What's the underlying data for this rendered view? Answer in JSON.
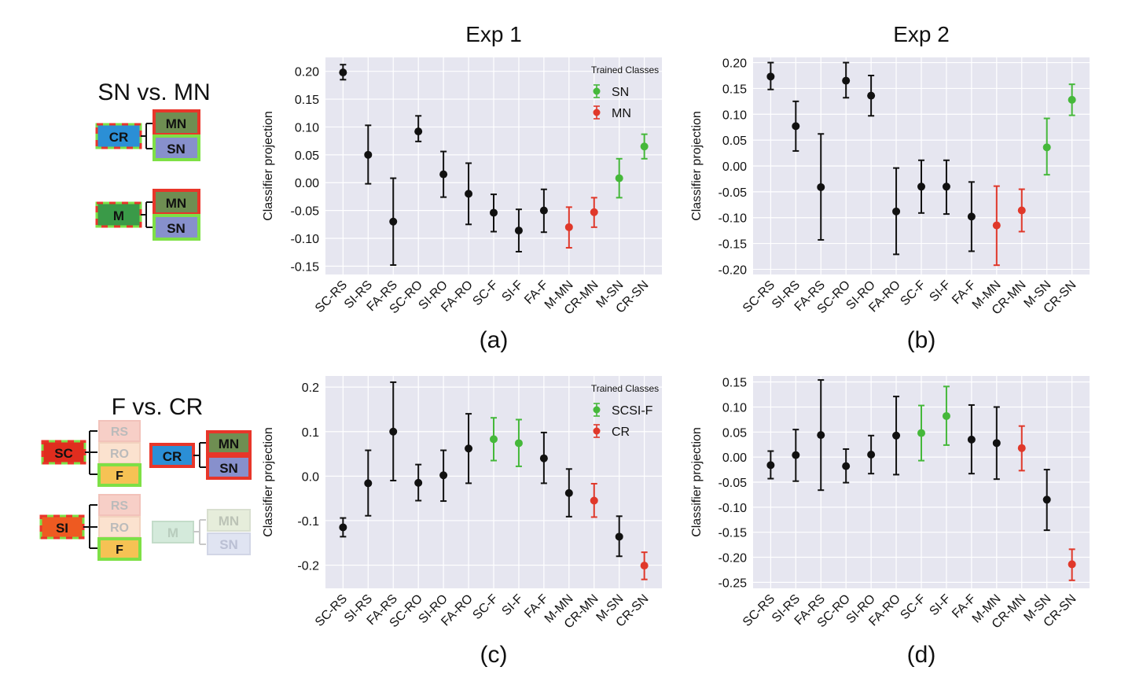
{
  "diagrams": {
    "top": {
      "title": "SN vs. MN",
      "groups": [
        {
          "source": "CR",
          "targets": [
            "MN",
            "SN"
          ]
        },
        {
          "source": "M",
          "targets": [
            "MN",
            "SN"
          ]
        }
      ]
    },
    "bottom": {
      "title": "F vs. CR",
      "groups": [
        {
          "source": "SC",
          "targets": [
            "RS",
            "RO",
            "F"
          ]
        },
        {
          "source": "SI",
          "targets": [
            "RS",
            "RO",
            "F"
          ]
        },
        {
          "source": "CR",
          "targets": [
            "MN",
            "SN"
          ]
        },
        {
          "source": "M",
          "targets": [
            "MN",
            "SN"
          ]
        }
      ]
    }
  },
  "colors": {
    "black": "#111111",
    "green": "#45b83a",
    "red": "#e0382a",
    "plot_bg": "#e6e6f0",
    "grid": "#ffffff",
    "box_blue": "#2b8fd6",
    "box_green": "#3a9a48",
    "box_olive": "#6f8e52",
    "box_lavender": "#8790cc",
    "box_red": "#e02d1e",
    "box_orange": "#ee5a21",
    "box_pink": "#f7cfc7",
    "box_peach": "#fbe2cf",
    "box_yellow": "#f6c254",
    "box_outline_red": "#e8362a",
    "box_outline_green": "#7ee046"
  },
  "chart_data": [
    {
      "id": "a",
      "type": "scatter",
      "title": "Exp 1",
      "panel_label": "(a)",
      "ylabel": "Classifier projection",
      "ylim": [
        -0.165,
        0.225
      ],
      "yticks": [
        "0.20",
        "0.15",
        "0.10",
        "0.05",
        "0.00",
        "-0.05",
        "-0.10",
        "-0.15"
      ],
      "categories": [
        "SC-RS",
        "SI-RS",
        "FA-RS",
        "SC-RO",
        "SI-RO",
        "FA-RO",
        "SC-F",
        "SI-F",
        "FA-F",
        "M-MN",
        "CR-MN",
        "M-SN",
        "CR-SN"
      ],
      "values": [
        0.198,
        0.05,
        -0.07,
        0.092,
        0.015,
        -0.02,
        -0.054,
        -0.086,
        -0.05,
        -0.08,
        -0.053,
        0.008,
        0.065
      ],
      "err_low": [
        0.185,
        -0.002,
        -0.148,
        0.074,
        -0.026,
        -0.075,
        -0.088,
        -0.124,
        -0.089,
        -0.117,
        -0.08,
        -0.027,
        0.043
      ],
      "err_high": [
        0.212,
        0.103,
        0.008,
        0.12,
        0.056,
        0.035,
        -0.021,
        -0.048,
        -0.012,
        -0.044,
        -0.027,
        0.043,
        0.087
      ],
      "colors": [
        "black",
        "black",
        "black",
        "black",
        "black",
        "black",
        "black",
        "black",
        "black",
        "red",
        "red",
        "green",
        "green"
      ],
      "legend": {
        "title": "Trained Classes",
        "entries": [
          {
            "label": "SN",
            "color": "green"
          },
          {
            "label": "MN",
            "color": "red"
          }
        ],
        "position": "top-right"
      },
      "grid": true
    },
    {
      "id": "b",
      "type": "scatter",
      "title": "Exp 2",
      "panel_label": "(b)",
      "ylabel": "Classifier projection",
      "ylim": [
        -0.21,
        0.21
      ],
      "yticks": [
        "0.20",
        "0.15",
        "0.10",
        "0.05",
        "0.00",
        "-0.05",
        "-0.10",
        "-0.15",
        "-0.20"
      ],
      "categories": [
        "SC-RS",
        "SI-RS",
        "FA-RS",
        "SC-RO",
        "SI-RO",
        "FA-RO",
        "SC-F",
        "SI-F",
        "FA-F",
        "M-MN",
        "CR-MN",
        "M-SN",
        "CR-SN"
      ],
      "values": [
        0.173,
        0.077,
        -0.041,
        0.165,
        0.136,
        -0.088,
        -0.04,
        -0.04,
        -0.098,
        -0.115,
        -0.086,
        0.036,
        0.128
      ],
      "err_low": [
        0.148,
        0.029,
        -0.143,
        0.132,
        0.097,
        -0.171,
        -0.091,
        -0.093,
        -0.165,
        -0.192,
        -0.127,
        -0.017,
        0.098
      ],
      "err_high": [
        0.2,
        0.125,
        0.062,
        0.2,
        0.175,
        -0.004,
        0.011,
        0.011,
        -0.031,
        -0.039,
        -0.045,
        0.092,
        0.158
      ],
      "colors": [
        "black",
        "black",
        "black",
        "black",
        "black",
        "black",
        "black",
        "black",
        "black",
        "red",
        "red",
        "green",
        "green"
      ],
      "grid": true
    },
    {
      "id": "c",
      "type": "scatter",
      "panel_label": "(c)",
      "ylabel": "Classifier projection",
      "ylim": [
        -0.252,
        0.225
      ],
      "yticks": [
        "0.2",
        "0.1",
        "0.0",
        "-0.1",
        "-0.2"
      ],
      "categories": [
        "SC-RS",
        "SI-RS",
        "FA-RS",
        "SC-RO",
        "SI-RO",
        "FA-RO",
        "SC-F",
        "SI-F",
        "FA-F",
        "M-MN",
        "CR-MN",
        "M-SN",
        "CR-SN"
      ],
      "values": [
        -0.115,
        -0.016,
        0.1,
        -0.015,
        0.002,
        0.062,
        0.083,
        0.074,
        0.04,
        -0.038,
        -0.055,
        -0.136,
        -0.201
      ],
      "err_low": [
        -0.136,
        -0.089,
        -0.01,
        -0.055,
        -0.056,
        -0.016,
        0.035,
        0.022,
        -0.016,
        -0.091,
        -0.092,
        -0.18,
        -0.232
      ],
      "err_high": [
        -0.094,
        0.058,
        0.211,
        0.026,
        0.058,
        0.14,
        0.131,
        0.127,
        0.098,
        0.016,
        -0.017,
        -0.09,
        -0.171
      ],
      "colors": [
        "black",
        "black",
        "black",
        "black",
        "black",
        "black",
        "green",
        "green",
        "black",
        "black",
        "red",
        "black",
        "red"
      ],
      "legend": {
        "title": "Trained Classes",
        "entries": [
          {
            "label": "SCSI-F",
            "color": "green"
          },
          {
            "label": "CR",
            "color": "red"
          }
        ],
        "position": "top-right"
      },
      "grid": true
    },
    {
      "id": "d",
      "type": "scatter",
      "panel_label": "(d)",
      "ylabel": "Classifier projection",
      "ylim": [
        -0.262,
        0.162
      ],
      "yticks": [
        "0.15",
        "0.10",
        "0.05",
        "0.00",
        "-0.05",
        "-0.10",
        "-0.15",
        "-0.20",
        "-0.25"
      ],
      "categories": [
        "SC-RS",
        "SI-RS",
        "FA-RS",
        "SC-RO",
        "SI-RO",
        "FA-RO",
        "SC-F",
        "SI-F",
        "FA-F",
        "M-MN",
        "CR-MN",
        "M-SN",
        "CR-SN"
      ],
      "values": [
        -0.016,
        0.004,
        0.044,
        -0.018,
        0.005,
        0.043,
        0.048,
        0.082,
        0.035,
        0.028,
        0.018,
        -0.085,
        -0.214
      ],
      "err_low": [
        -0.043,
        -0.048,
        -0.066,
        -0.051,
        -0.033,
        -0.035,
        -0.007,
        0.024,
        -0.033,
        -0.044,
        -0.027,
        -0.146,
        -0.246
      ],
      "err_high": [
        0.012,
        0.055,
        0.154,
        0.016,
        0.043,
        0.121,
        0.103,
        0.141,
        0.104,
        0.1,
        0.062,
        -0.025,
        -0.184
      ],
      "colors": [
        "black",
        "black",
        "black",
        "black",
        "black",
        "black",
        "green",
        "green",
        "black",
        "black",
        "red",
        "black",
        "red"
      ],
      "grid": true
    }
  ]
}
